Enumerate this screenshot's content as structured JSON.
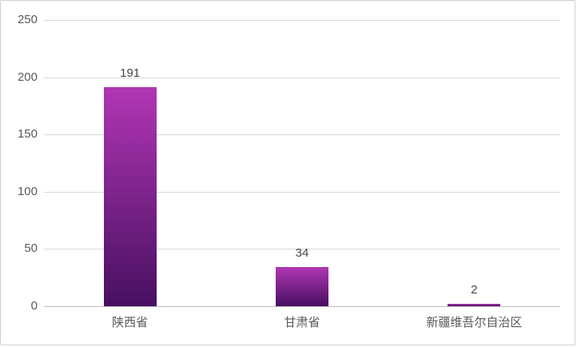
{
  "chart_data": {
    "type": "bar",
    "title": "",
    "xlabel": "",
    "ylabel": "",
    "categories": [
      "陕西省",
      "甘肃省",
      "新疆维吾尔自治区"
    ],
    "values": [
      191,
      34,
      2
    ],
    "data_labels": [
      "191",
      "34",
      "2"
    ],
    "ylim": [
      0,
      250
    ],
    "y_ticks": [
      0,
      50,
      100,
      150,
      200,
      250
    ],
    "grid": "horizontal",
    "legend": "none",
    "colors": {
      "bar_gradient_top": "#b136b4",
      "bar_gradient_bottom": "#471061",
      "gridline": "#d9d9d9",
      "axis_line": "#bfbfbf",
      "tick_label": "#595959",
      "data_label": "#444444",
      "category_label": "#595959",
      "background": "#ffffff",
      "frame_border": "#cfcfcf"
    }
  }
}
